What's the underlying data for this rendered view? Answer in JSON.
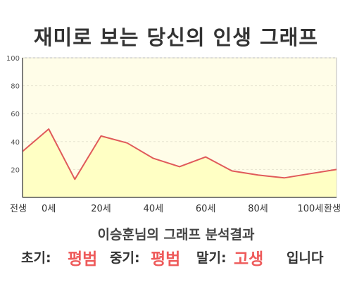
{
  "page": {
    "title": "재미로 보는 당신의 인생 그래프",
    "subtitle": "이승훈님의 그래프 분석결과",
    "result": {
      "early_label": "초기:",
      "early_value": "평범",
      "mid_label": "중기:",
      "mid_value": "평범",
      "late_label": "말기:",
      "late_value": "고생",
      "suffix": "입니다"
    }
  },
  "colors": {
    "line": "#e05a5a",
    "fill": "#ffffc4",
    "plot_bg": "#fffde8",
    "highlight_text": "#ee5a5a"
  },
  "chart_data": {
    "type": "area",
    "x": [
      -10,
      0,
      10,
      20,
      30,
      40,
      50,
      60,
      70,
      80,
      90,
      100,
      110
    ],
    "xtick_labels": [
      "전생",
      "0세",
      "20세",
      "40세",
      "60세",
      "80세",
      "100세",
      "환생"
    ],
    "xtick_positions": [
      -10,
      0,
      20,
      40,
      60,
      80,
      100,
      110
    ],
    "series": [
      {
        "values": [
          33,
          49,
          13,
          44,
          39,
          28,
          22,
          29,
          19,
          16,
          14,
          17,
          20
        ]
      }
    ],
    "ylim": [
      0,
      100
    ],
    "yticks": [
      20,
      40,
      60,
      80,
      100
    ],
    "grid": true,
    "title": "",
    "xlabel": "",
    "ylabel": ""
  }
}
